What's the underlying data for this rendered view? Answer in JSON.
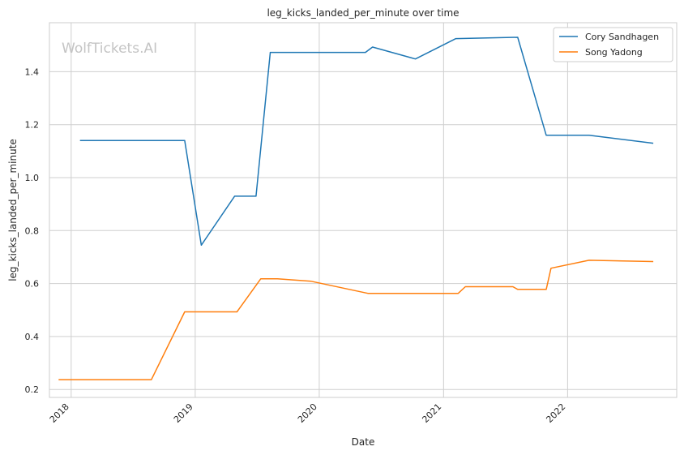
{
  "chart_data": {
    "type": "line",
    "title": "leg_kicks_landed_per_minute over time",
    "xlabel": "Date",
    "ylabel": "leg_kicks_landed_per_minute",
    "watermark": "WolfTickets.AI",
    "x_ticks": [
      "2018",
      "2019",
      "2020",
      "2021",
      "2022"
    ],
    "y_ticks": [
      "0.2",
      "0.4",
      "0.6",
      "0.8",
      "1.0",
      "1.2",
      "1.4"
    ],
    "xlim": [
      "2017-10-29",
      "2022-11-18"
    ],
    "ylim": [
      0.17,
      1.585
    ],
    "grid": true,
    "legend_position": "top-right",
    "series": [
      {
        "name": "Cory Sandhagen",
        "color": "#1f77b4",
        "points": [
          [
            "2018-01-27",
            1.14
          ],
          [
            "2018-12-01",
            1.14
          ],
          [
            "2019-01-19",
            0.745
          ],
          [
            "2019-04-27",
            0.93
          ],
          [
            "2019-06-29",
            0.93
          ],
          [
            "2019-08-10",
            1.473
          ],
          [
            "2020-05-16",
            1.473
          ],
          [
            "2020-06-06",
            1.493
          ],
          [
            "2020-10-10",
            1.448
          ],
          [
            "2021-02-06",
            1.525
          ],
          [
            "2021-08-07",
            1.53
          ],
          [
            "2021-10-30",
            1.16
          ],
          [
            "2022-03-05",
            1.16
          ],
          [
            "2022-09-10",
            1.13
          ]
        ]
      },
      {
        "name": "Song Yadong",
        "color": "#ff7f0e",
        "points": [
          [
            "2017-11-25",
            0.237
          ],
          [
            "2018-08-25",
            0.237
          ],
          [
            "2018-12-01",
            0.493
          ],
          [
            "2019-05-04",
            0.493
          ],
          [
            "2019-07-13",
            0.618
          ],
          [
            "2019-08-31",
            0.618
          ],
          [
            "2019-12-07",
            0.609
          ],
          [
            "2020-05-23",
            0.563
          ],
          [
            "2021-02-13",
            0.563
          ],
          [
            "2021-03-06",
            0.588
          ],
          [
            "2021-07-24",
            0.588
          ],
          [
            "2021-08-07",
            0.578
          ],
          [
            "2021-10-30",
            0.578
          ],
          [
            "2021-11-13",
            0.658
          ],
          [
            "2022-03-05",
            0.688
          ],
          [
            "2022-09-10",
            0.683
          ]
        ]
      }
    ]
  }
}
